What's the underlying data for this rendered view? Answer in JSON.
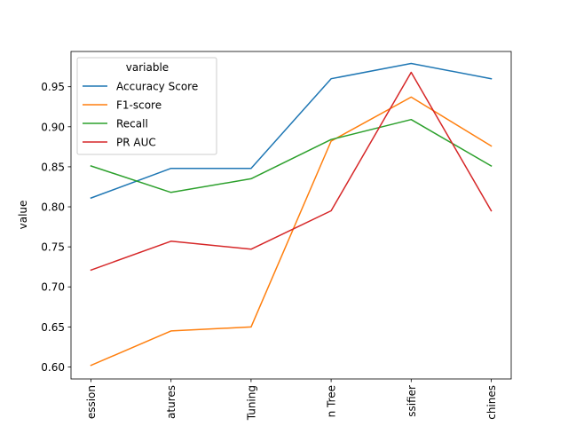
{
  "chart_data": {
    "type": "line",
    "title": "",
    "xlabel": "",
    "ylabel": "value",
    "categories": [
      "ession",
      "atures",
      "Tuning",
      "n Tree",
      "ssifier",
      "chines"
    ],
    "ylim": [
      0.585,
      0.994
    ],
    "yticks": [
      0.6,
      0.65,
      0.7,
      0.75,
      0.8,
      0.85,
      0.9,
      0.95
    ],
    "grid": false,
    "legend": {
      "title": "variable",
      "placement": "top-left"
    },
    "series": [
      {
        "name": "Accuracy Score",
        "color": "#1f77b4",
        "values": [
          0.811,
          0.848,
          0.848,
          0.96,
          0.979,
          0.96
        ]
      },
      {
        "name": "F1-score",
        "color": "#ff7f0e",
        "values": [
          0.602,
          0.645,
          0.65,
          0.882,
          0.937,
          0.876
        ]
      },
      {
        "name": "Recall",
        "color": "#2ca02c",
        "values": [
          0.851,
          0.818,
          0.835,
          0.884,
          0.909,
          0.851
        ]
      },
      {
        "name": "PR AUC",
        "color": "#d62728",
        "values": [
          0.721,
          0.757,
          0.747,
          0.795,
          0.968,
          0.795
        ]
      }
    ]
  }
}
